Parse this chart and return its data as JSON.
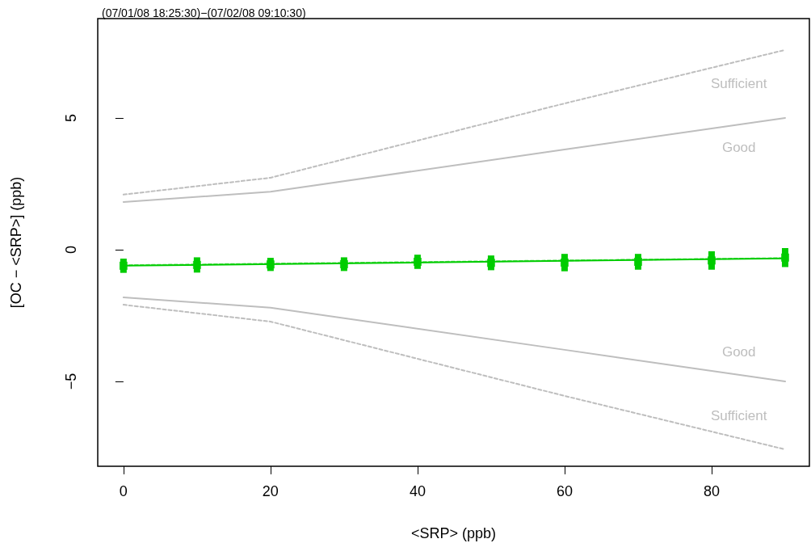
{
  "chart_data": {
    "type": "scatter",
    "title": "(07/01/08 18:25:30)−(07/02/08 09:10:30)",
    "xlabel": "<SRP> (ppb)",
    "ylabel": "[OC − <SRP>] (ppb)",
    "xlim": [
      -3.5,
      93.3
    ],
    "ylim": [
      -8.22,
      8.77
    ],
    "xticks": [
      0,
      20,
      40,
      60,
      80
    ],
    "yticks": [
      -5,
      0,
      5
    ],
    "grid": false,
    "series": [
      {
        "type": "line",
        "color": "#bebebe",
        "line_style": "dashed",
        "marker": "none",
        "x": [
          0,
          20,
          60,
          90
        ],
        "values": [
          2.09,
          2.73,
          5.55,
          7.58
        ]
      },
      {
        "type": "line",
        "color": "#bebebe",
        "line_style": "solid",
        "marker": "none",
        "x": [
          0,
          20,
          60,
          90
        ],
        "values": [
          1.81,
          2.2,
          3.8,
          5.0
        ]
      },
      {
        "type": "line",
        "color": "#bebebe",
        "line_style": "solid",
        "marker": "none",
        "x": [
          0,
          20,
          60,
          90
        ],
        "values": [
          -1.81,
          -2.2,
          -3.8,
          -5.0
        ]
      },
      {
        "type": "line",
        "color": "#bebebe",
        "line_style": "dashed",
        "marker": "none",
        "x": [
          0,
          20,
          60,
          90
        ],
        "values": [
          -2.09,
          -2.73,
          -5.55,
          -7.58
        ]
      },
      {
        "type": "line",
        "color": "#66dd66",
        "line_style": "dashed",
        "marker": "none",
        "x": [
          0,
          90
        ],
        "values": [
          -0.59,
          -0.32
        ]
      },
      {
        "type": "line",
        "color": "#00cc00",
        "line_style": "solid",
        "marker": "none",
        "x": [
          0,
          90
        ],
        "values": [
          -0.61,
          -0.33
        ]
      },
      {
        "color": "#00cc00",
        "marker": "square",
        "x": [
          0,
          10,
          20,
          30,
          40,
          50,
          60,
          70,
          80,
          90
        ],
        "values": [
          -0.61,
          -0.58,
          -0.56,
          -0.55,
          -0.46,
          -0.5,
          -0.49,
          -0.46,
          -0.41,
          -0.3
        ],
        "errors": [
          0.27,
          0.29,
          0.25,
          0.26,
          0.27,
          0.28,
          0.33,
          0.3,
          0.35,
          0.36
        ]
      }
    ],
    "annotations": [
      "Sufficient",
      "Good",
      "Good",
      "Sufficient"
    ]
  }
}
